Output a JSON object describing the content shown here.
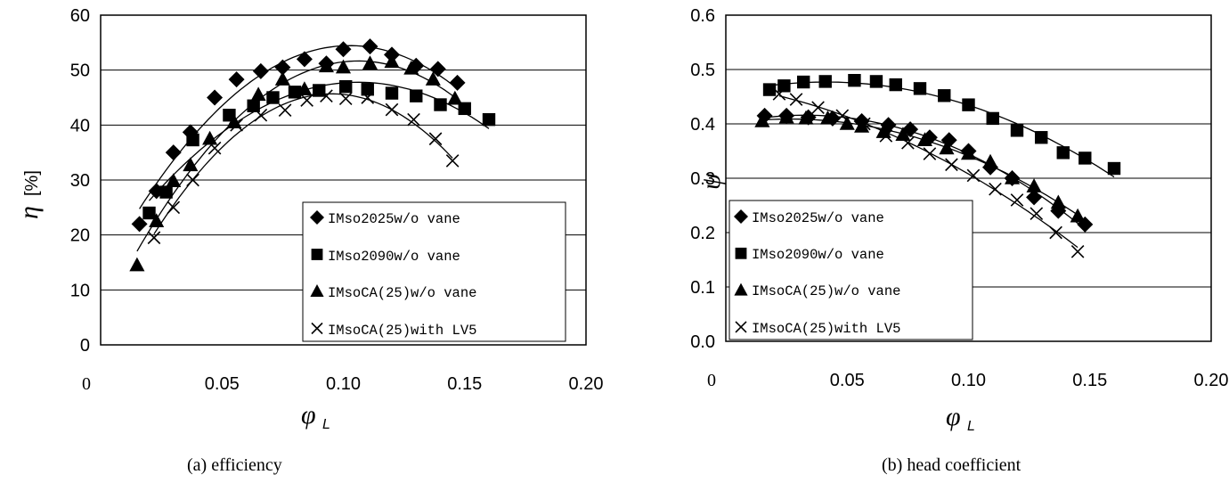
{
  "legend_entries": [
    "IMso2025w/o vane",
    "IMso2090w/o vane",
    "IMsoCA(25)w/o vane",
    "IMsoCA(25)with LV5"
  ],
  "chart_data": [
    {
      "type": "scatter",
      "caption": "(a)  efficiency",
      "xlabel": "φ",
      "xlabel_sub": "L",
      "ylabel": "η",
      "yunit": "[%]",
      "xlim": [
        0,
        0.2
      ],
      "ylim": [
        0,
        60
      ],
      "xticks": [
        "0",
        "0.05",
        "0.10",
        "0.15",
        "0.20"
      ],
      "yticks": [
        "0",
        "10",
        "20",
        "30",
        "40",
        "50",
        "60"
      ],
      "grid": "horizontal",
      "legend": "bottom-right",
      "series": [
        {
          "name": "IMso2025w/o vane",
          "marker": "diamond",
          "points": [
            [
              0.016,
              22.0
            ],
            [
              0.023,
              28.0
            ],
            [
              0.03,
              35.0
            ],
            [
              0.037,
              38.7
            ],
            [
              0.047,
              45.0
            ],
            [
              0.056,
              48.3
            ],
            [
              0.066,
              49.8
            ],
            [
              0.075,
              50.5
            ],
            [
              0.084,
              52.0
            ],
            [
              0.093,
              51.2
            ],
            [
              0.1,
              53.8
            ],
            [
              0.111,
              54.3
            ],
            [
              0.12,
              52.8
            ],
            [
              0.13,
              50.8
            ],
            [
              0.139,
              50.2
            ],
            [
              0.147,
              47.7
            ]
          ]
        },
        {
          "name": "IMso2090w/o vane",
          "marker": "square",
          "points": [
            [
              0.02,
              24.0
            ],
            [
              0.027,
              27.8
            ],
            [
              0.038,
              37.3
            ],
            [
              0.053,
              41.8
            ],
            [
              0.063,
              43.5
            ],
            [
              0.071,
              45.0
            ],
            [
              0.08,
              46.0
            ],
            [
              0.09,
              46.3
            ],
            [
              0.101,
              47.0
            ],
            [
              0.11,
              46.5
            ],
            [
              0.12,
              45.8
            ],
            [
              0.13,
              45.3
            ],
            [
              0.14,
              43.7
            ],
            [
              0.15,
              43.0
            ],
            [
              0.16,
              41.0
            ]
          ]
        },
        {
          "name": "IMsoCA(25)w/o vane",
          "marker": "triangle",
          "points": [
            [
              0.015,
              14.5
            ],
            [
              0.023,
              22.5
            ],
            [
              0.03,
              29.8
            ],
            [
              0.037,
              32.7
            ],
            [
              0.045,
              37.5
            ],
            [
              0.055,
              40.5
            ],
            [
              0.065,
              45.5
            ],
            [
              0.075,
              48.3
            ],
            [
              0.084,
              46.5
            ],
            [
              0.093,
              50.7
            ],
            [
              0.1,
              50.5
            ],
            [
              0.111,
              51.2
            ],
            [
              0.12,
              51.5
            ],
            [
              0.128,
              50.3
            ],
            [
              0.137,
              48.3
            ],
            [
              0.146,
              44.8
            ]
          ]
        },
        {
          "name": "IMsoCA(25)with LV5",
          "marker": "x",
          "points": [
            [
              0.022,
              19.5
            ],
            [
              0.03,
              25.0
            ],
            [
              0.038,
              30.0
            ],
            [
              0.047,
              35.8
            ],
            [
              0.056,
              40.0
            ],
            [
              0.066,
              41.8
            ],
            [
              0.076,
              42.7
            ],
            [
              0.085,
              44.5
            ],
            [
              0.093,
              45.3
            ],
            [
              0.101,
              44.8
            ],
            [
              0.11,
              45.0
            ],
            [
              0.12,
              42.8
            ],
            [
              0.129,
              41.0
            ],
            [
              0.138,
              37.5
            ],
            [
              0.145,
              33.5
            ]
          ]
        }
      ]
    },
    {
      "type": "scatter",
      "caption": "(b)  head coefficient",
      "xlabel": "φ",
      "xlabel_sub": "L",
      "ylabel": "ψ",
      "xlim": [
        0,
        0.2
      ],
      "ylim": [
        0,
        0.6
      ],
      "xticks": [
        "0",
        "0.05",
        "0.10",
        "0.15",
        "0.20"
      ],
      "yticks": [
        "0.0",
        "0.1",
        "0.2",
        "0.3",
        "0.4",
        "0.5",
        "0.6"
      ],
      "grid": "horizontal",
      "legend": "bottom-left",
      "series": [
        {
          "name": "IMso2025w/o vane",
          "marker": "diamond",
          "points": [
            [
              0.016,
              0.415
            ],
            [
              0.025,
              0.415
            ],
            [
              0.034,
              0.412
            ],
            [
              0.044,
              0.41
            ],
            [
              0.056,
              0.405
            ],
            [
              0.067,
              0.398
            ],
            [
              0.076,
              0.39
            ],
            [
              0.084,
              0.375
            ],
            [
              0.092,
              0.37
            ],
            [
              0.1,
              0.35
            ],
            [
              0.109,
              0.32
            ],
            [
              0.118,
              0.3
            ],
            [
              0.127,
              0.265
            ],
            [
              0.137,
              0.24
            ],
            [
              0.148,
              0.215
            ]
          ]
        },
        {
          "name": "IMso2090w/o vane",
          "marker": "square",
          "points": [
            [
              0.018,
              0.463
            ],
            [
              0.024,
              0.47
            ],
            [
              0.032,
              0.477
            ],
            [
              0.041,
              0.478
            ],
            [
              0.053,
              0.48
            ],
            [
              0.062,
              0.478
            ],
            [
              0.07,
              0.472
            ],
            [
              0.08,
              0.465
            ],
            [
              0.09,
              0.452
            ],
            [
              0.1,
              0.435
            ],
            [
              0.11,
              0.41
            ],
            [
              0.12,
              0.388
            ],
            [
              0.13,
              0.375
            ],
            [
              0.139,
              0.347
            ],
            [
              0.148,
              0.337
            ],
            [
              0.16,
              0.318
            ]
          ]
        },
        {
          "name": "IMsoCA(25)w/o vane",
          "marker": "triangle",
          "points": [
            [
              0.015,
              0.405
            ],
            [
              0.025,
              0.412
            ],
            [
              0.033,
              0.41
            ],
            [
              0.042,
              0.41
            ],
            [
              0.05,
              0.4
            ],
            [
              0.056,
              0.395
            ],
            [
              0.065,
              0.385
            ],
            [
              0.073,
              0.38
            ],
            [
              0.082,
              0.37
            ],
            [
              0.091,
              0.355
            ],
            [
              0.1,
              0.345
            ],
            [
              0.109,
              0.33
            ],
            [
              0.118,
              0.3
            ],
            [
              0.127,
              0.285
            ],
            [
              0.137,
              0.255
            ],
            [
              0.145,
              0.23
            ]
          ]
        },
        {
          "name": "IMsoCA(25)with LV5",
          "marker": "x",
          "points": [
            [
              0.022,
              0.455
            ],
            [
              0.029,
              0.445
            ],
            [
              0.038,
              0.43
            ],
            [
              0.048,
              0.415
            ],
            [
              0.057,
              0.4
            ],
            [
              0.066,
              0.378
            ],
            [
              0.075,
              0.365
            ],
            [
              0.084,
              0.345
            ],
            [
              0.093,
              0.325
            ],
            [
              0.102,
              0.305
            ],
            [
              0.111,
              0.28
            ],
            [
              0.12,
              0.26
            ],
            [
              0.128,
              0.235
            ],
            [
              0.136,
              0.2
            ],
            [
              0.145,
              0.165
            ]
          ]
        }
      ]
    }
  ]
}
